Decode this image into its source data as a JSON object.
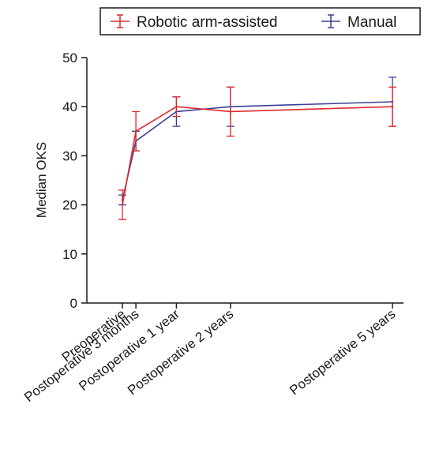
{
  "chart_data": {
    "type": "line",
    "title": "",
    "xlabel": "",
    "ylabel": "Median OKS",
    "ylim": [
      0,
      50
    ],
    "yticks": [
      0,
      10,
      20,
      30,
      40,
      50
    ],
    "x_unit": "months",
    "x": [
      0,
      3,
      12,
      24,
      60
    ],
    "categories": [
      "Preoperative",
      "Postoperative 3 months",
      "Postoperative 1 year",
      "Postoperative 2 years",
      "Postoperative 5 years"
    ],
    "grid": false,
    "legend_position": "top",
    "series": [
      {
        "name": "Robotic arm-assisted",
        "color": "#e0282e",
        "values": [
          20,
          35,
          40,
          39,
          40
        ],
        "err_low": [
          17,
          31,
          38,
          34,
          36
        ],
        "err_high": [
          23,
          39,
          42,
          44,
          44
        ]
      },
      {
        "name": "Manual",
        "color": "#3a3f96",
        "values": [
          21,
          33,
          39,
          40,
          41
        ],
        "err_low": [
          20,
          31,
          36,
          36,
          36
        ],
        "err_high": [
          22,
          35,
          42,
          44,
          46
        ]
      }
    ]
  }
}
